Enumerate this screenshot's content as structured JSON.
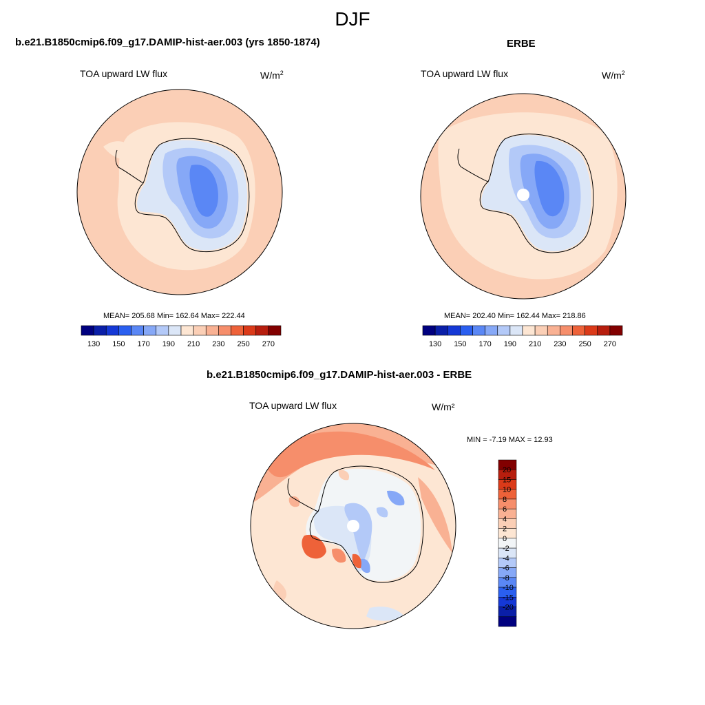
{
  "figure": {
    "title": "DJF"
  },
  "panels": {
    "model": {
      "title": "b.e21.B1850cmip6.f09_g17.DAMIP-hist-aer.003 (yrs 1850-1874)",
      "variable": "TOA upward LW flux",
      "units_base": "W/m",
      "units_exp": "2",
      "stats": "MEAN= 205.68  Min= 162.64  Max= 222.44"
    },
    "obs": {
      "title": "ERBE",
      "variable": "TOA upward LW flux",
      "units_base": "W/m",
      "units_exp": "2",
      "stats": "MEAN= 202.40  Min= 162.44  Max= 218.86"
    },
    "diff": {
      "title": "b.e21.B1850cmip6.f09_g17.DAMIP-hist-aer.003 - ERBE",
      "variable": "TOA upward LW flux",
      "units": "W/m²",
      "minmax": "MIN =  -7.19 MAX =  12.93"
    }
  },
  "chart_data": [
    {
      "type": "heatmap",
      "projection": "south polar stereographic",
      "title": "b.e21.B1850cmip6.f09_g17.DAMIP-hist-aer.003 (yrs 1850-1874)",
      "variable": "TOA upward LW flux",
      "units": "W/m2",
      "mean": 205.68,
      "min": 162.64,
      "max": 222.44,
      "colorbar": {
        "levels": [
          130,
          140,
          150,
          160,
          170,
          180,
          190,
          200,
          210,
          220,
          230,
          240,
          250,
          260,
          270
        ],
        "tick_labels": [
          "130",
          "150",
          "170",
          "190",
          "210",
          "230",
          "250",
          "270"
        ],
        "colors": [
          "#00007f",
          "#0a1fa8",
          "#1538d6",
          "#2a5ff0",
          "#5a87f5",
          "#86a8f7",
          "#b3c9f8",
          "#dbe6f7",
          "#fde6d3",
          "#fbcfb6",
          "#f9b193",
          "#f68e6b",
          "#ee6239",
          "#db3a19",
          "#b71e0e",
          "#820000"
        ]
      }
    },
    {
      "type": "heatmap",
      "projection": "south polar stereographic",
      "title": "ERBE",
      "variable": "TOA upward LW flux",
      "units": "W/m2",
      "mean": 202.4,
      "min": 162.44,
      "max": 218.86,
      "colorbar": {
        "levels": [
          130,
          140,
          150,
          160,
          170,
          180,
          190,
          200,
          210,
          220,
          230,
          240,
          250,
          260,
          270
        ],
        "tick_labels": [
          "130",
          "150",
          "170",
          "190",
          "210",
          "230",
          "250",
          "270"
        ]
      }
    },
    {
      "type": "heatmap",
      "projection": "south polar stereographic",
      "title": "b.e21.B1850cmip6.f09_g17.DAMIP-hist-aer.003 - ERBE",
      "variable": "TOA upward LW flux",
      "units": "W/m2",
      "min": -7.19,
      "max": 12.93,
      "colorbar": {
        "levels": [
          20,
          15,
          10,
          8,
          6,
          4,
          2,
          0,
          -2,
          -4,
          -6,
          -8,
          -10,
          -15,
          -20
        ],
        "tick_labels": [
          "20",
          "15",
          "10",
          "8",
          "6",
          "4",
          "2",
          "0",
          "-2",
          "-4",
          "-6",
          "-8",
          "-10",
          "-15",
          "-20"
        ],
        "colors": [
          "#820000",
          "#b71e0e",
          "#db3a19",
          "#ee6239",
          "#f68e6b",
          "#f9b193",
          "#fbcfb6",
          "#fde6d3",
          "#f2f5f7",
          "#dbe6f7",
          "#b3c9f8",
          "#86a8f7",
          "#5a87f5",
          "#2a5ff0",
          "#1538d6",
          "#0a1fa8",
          "#00007f"
        ]
      }
    }
  ]
}
